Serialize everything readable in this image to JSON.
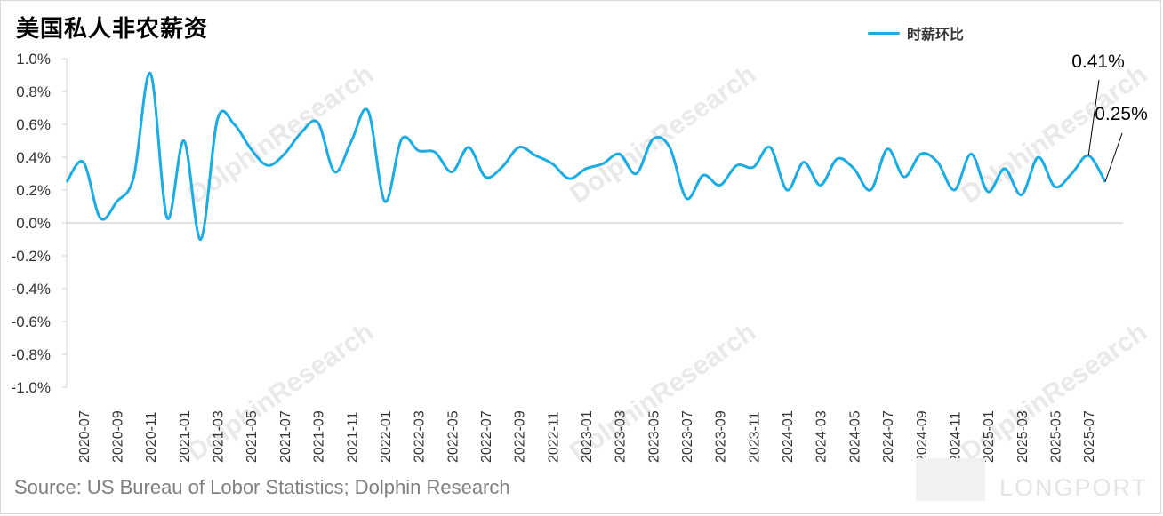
{
  "title": "美国私人非农薪资",
  "legend": {
    "label": "时薪环比",
    "color": "#1aace3"
  },
  "source": "Source: US Bureau of Lobor Statistics; Dolphin Research",
  "watermark": {
    "text": "DolphinResearch",
    "brand": "LONGPORT"
  },
  "chart_data": {
    "type": "line",
    "title": "美国私人非农薪资",
    "ylim": [
      -1.0,
      1.0
    ],
    "y_ticks": [
      "1.0%",
      "0.8%",
      "0.6%",
      "0.4%",
      "0.2%",
      "0.0%",
      "-0.2%",
      "-0.4%",
      "-0.6%",
      "-0.8%",
      "-1.0%"
    ],
    "y_tick_values": [
      1.0,
      0.8,
      0.6,
      0.4,
      0.2,
      0.0,
      -0.2,
      -0.4,
      -0.6,
      -0.8,
      -1.0
    ],
    "x_tick_labels": [
      "2020-07",
      "2020-09",
      "2020-11",
      "2021-01",
      "2021-03",
      "2021-05",
      "2021-07",
      "2021-09",
      "2021-11",
      "2022-01",
      "2022-03",
      "2022-05",
      "2022-07",
      "2022-09",
      "2022-11",
      "2023-01",
      "2023-03",
      "2023-05",
      "2023-07",
      "2023-09",
      "2023-11",
      "2024-01",
      "2024-03",
      "2024-05",
      "2024-07",
      "2024-09",
      "2024-11",
      "2025-01",
      "2025-03",
      "2025-05",
      "2025-07"
    ],
    "x": [
      "2020-06",
      "2020-07",
      "2020-08",
      "2020-09",
      "2020-10",
      "2020-11",
      "2020-12",
      "2021-01",
      "2021-02",
      "2021-03",
      "2021-04",
      "2021-05",
      "2021-06",
      "2021-07",
      "2021-08",
      "2021-09",
      "2021-10",
      "2021-11",
      "2021-12",
      "2022-01",
      "2022-02",
      "2022-03",
      "2022-04",
      "2022-05",
      "2022-06",
      "2022-07",
      "2022-08",
      "2022-09",
      "2022-10",
      "2022-11",
      "2022-12",
      "2023-01",
      "2023-02",
      "2023-03",
      "2023-04",
      "2023-05",
      "2023-06",
      "2023-07",
      "2023-08",
      "2023-09",
      "2023-10",
      "2023-11",
      "2023-12",
      "2024-01",
      "2024-02",
      "2024-03",
      "2024-04",
      "2024-05",
      "2024-06",
      "2024-07",
      "2024-08",
      "2024-09",
      "2024-10",
      "2024-11",
      "2024-12",
      "2025-01",
      "2025-02",
      "2025-03",
      "2025-04",
      "2025-05",
      "2025-06",
      "2025-07",
      "2025-08"
    ],
    "series": [
      {
        "name": "时薪环比",
        "color": "#1aace3",
        "values": [
          0.25,
          0.37,
          0.03,
          0.13,
          0.28,
          0.91,
          0.03,
          0.5,
          -0.1,
          0.63,
          0.6,
          0.45,
          0.35,
          0.42,
          0.55,
          0.61,
          0.31,
          0.5,
          0.68,
          0.13,
          0.51,
          0.44,
          0.43,
          0.31,
          0.46,
          0.28,
          0.34,
          0.46,
          0.41,
          0.36,
          0.27,
          0.33,
          0.36,
          0.42,
          0.3,
          0.51,
          0.46,
          0.15,
          0.29,
          0.23,
          0.35,
          0.34,
          0.46,
          0.2,
          0.37,
          0.23,
          0.39,
          0.33,
          0.2,
          0.45,
          0.28,
          0.42,
          0.37,
          0.2,
          0.42,
          0.19,
          0.33,
          0.17,
          0.4,
          0.22,
          0.3,
          0.41,
          0.25
        ]
      }
    ],
    "annotations": [
      {
        "label": "0.41%",
        "x": "2025-07",
        "y": 0.41
      },
      {
        "label": "0.25%",
        "x": "2025-08",
        "y": 0.25
      }
    ],
    "zero_line": true,
    "grid": false,
    "legend_position": "top-right"
  }
}
